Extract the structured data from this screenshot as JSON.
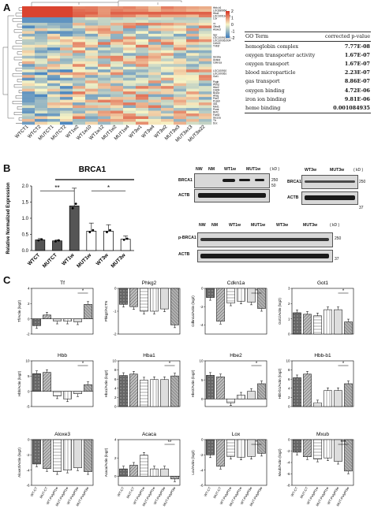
{
  "panels": {
    "a": "A",
    "b": "B",
    "c": "C"
  },
  "heatmap": {
    "columns": [
      "WTCT1",
      "WTCT2",
      "MUTCT1",
      "MUTCT2",
      "WT1w2",
      "WT1w10",
      "WT1w12",
      "MUT1w2",
      "MUT1w4",
      "WT3w1",
      "WT3w4",
      "WT3w2",
      "MUT3w3",
      "MUT3w13",
      "MUT3w22"
    ],
    "row_labels": [
      "Hbb-b1",
      "LOC689064",
      "Hba1",
      "LOC100134871",
      "Lox",
      "",
      "Tf",
      "Olfml3",
      "Aloxe3",
      "",
      "Gpr",
      "LOC100911070",
      "LOC100361934",
      "Cdh22",
      "Tnfrsf",
      "",
      "",
      "",
      "Slc16a",
      "Acaca",
      "Cdkn1a",
      "",
      "",
      "LOC100910",
      "LOC100361",
      "Got1",
      "",
      "Pygb",
      "Pkm2",
      "Hbe2",
      "Cdk5r",
      "Bcl2a",
      "Ahsg",
      "Pdx1",
      "Pcsk9",
      "Gli1",
      "Mxd1",
      "Pnmt",
      "Rnf2",
      "Fam3",
      "Slc12a",
      "Tfr",
      "Dcx"
    ],
    "colorbar_ticks": [
      "2",
      "1",
      "0",
      "-1",
      "-2"
    ]
  },
  "go_table": {
    "header": {
      "term": "GO Term",
      "pvalue": "corrected p-value"
    },
    "rows": [
      {
        "term": "hemoglobin complex",
        "p": "7.77E-08"
      },
      {
        "term": "oxygen transporter activity",
        "p": "1.67E-07"
      },
      {
        "term": "oxygen transport",
        "p": "1.67E-07"
      },
      {
        "term": "blood microparticle",
        "p": "2.23E-07"
      },
      {
        "term": "gas transport",
        "p": "8.86E-07"
      },
      {
        "term": "oxygen binding",
        "p": "4.72E-06"
      },
      {
        "term": "iron ion binding",
        "p": "9.81E-06"
      },
      {
        "term": "heme binding",
        "p": "0.001084935"
      }
    ]
  },
  "chart_data": [
    {
      "type": "bar",
      "panel": "B",
      "title": "BRCA1",
      "ylabel": "Relative Normalized Expression",
      "categories": [
        "WTCT",
        "MUTCT",
        "WT1w",
        "MUT1w",
        "WT3w",
        "MUT3w"
      ],
      "values": [
        0.33,
        0.3,
        1.38,
        0.6,
        0.6,
        0.35
      ],
      "errors": [
        0.04,
        0.03,
        0.55,
        0.25,
        0.2,
        0.1
      ],
      "ylim": [
        0.0,
        2.0
      ],
      "yticks": [
        "0.0",
        "0.5",
        "1.0",
        "1.5",
        "2.0"
      ],
      "significance": [
        "**",
        "*"
      ]
    },
    {
      "type": "bar",
      "panel": "C",
      "title": "Tf",
      "ylabel": "Tf/Actin (log2)",
      "categories": [
        "WT-CT",
        "MUT-CT",
        "WT-PolyPl1w",
        "MUT-PolyPl1w",
        "WT-PolyPl3w",
        "MUT-PolyPl3w"
      ],
      "values": [
        -0.9,
        0.5,
        -0.3,
        -0.3,
        -0.4,
        1.9
      ],
      "ylim": [
        -2,
        4
      ],
      "yticks": [
        "4",
        "2",
        "0",
        "-2"
      ],
      "significance": [
        "*"
      ]
    },
    {
      "type": "bar",
      "panel": "C",
      "title": "Phkg2",
      "ylabel": "Phkg2/ACTN",
      "categories": [
        "WT-CT",
        "MUT-CT",
        "WT-PolyPl1w",
        "MUT-PolyPl1w",
        "WT-PolyPl3w",
        "MUT-PolyPl3w"
      ],
      "values": [
        -0.7,
        -0.8,
        -1.0,
        -1.0,
        -0.9,
        -1.6
      ],
      "ylim": [
        -2,
        0
      ],
      "yticks": [
        "0",
        "-1",
        "-2"
      ],
      "significance": []
    },
    {
      "type": "bar",
      "panel": "C",
      "title": "Cdkn1a",
      "ylabel": "Cdkn1a/Actin (log2)",
      "categories": [
        "WT-CT",
        "MUT-CT",
        "WT-PolyPl1w",
        "MUT-PolyPl1w",
        "WT-PolyPl3w",
        "MUT-PolyPl3w"
      ],
      "values": [
        -1.0,
        -3.6,
        -1.6,
        -1.4,
        -1.5,
        -2.2
      ],
      "ylim": [
        -5,
        0
      ],
      "yticks": [
        "0",
        "-2",
        "-4"
      ],
      "significance": [
        "*"
      ]
    },
    {
      "type": "bar",
      "panel": "C",
      "title": "Got1",
      "ylabel": "Got1/Actin (log2)",
      "categories": [
        "WT-CT",
        "MUT-CT",
        "WT-PolyPl1w",
        "MUT-PolyPl1w",
        "WT-PolyPl3w",
        "MUT-PolyPl3w"
      ],
      "values": [
        1.4,
        1.3,
        1.2,
        1.6,
        1.6,
        0.8
      ],
      "ylim": [
        0,
        3
      ],
      "yticks": [
        "3",
        "2",
        "1",
        "0"
      ],
      "significance": [
        "*"
      ]
    },
    {
      "type": "bar",
      "panel": "C",
      "title": "Hbb",
      "ylabel": "Hbb/Actin (log2)",
      "categories": [
        "WT-CT",
        "MUT-CT",
        "WT-PolyPl1w",
        "MUT-PolyPl1w",
        "WT-PolyPl3w",
        "MUT-PolyPl3w"
      ],
      "values": [
        5.8,
        6.2,
        -1.5,
        -2.5,
        -0.8,
        2.2
      ],
      "ylim": [
        -5,
        10
      ],
      "yticks": [
        "10",
        "5",
        "0",
        "-5"
      ],
      "significance": [
        "*"
      ]
    },
    {
      "type": "bar",
      "panel": "C",
      "title": "Hba1",
      "ylabel": "Hba1/Actin (log2)",
      "categories": [
        "WT-CT",
        "MUT-CT",
        "WT-PolyPl1w",
        "MUT-PolyPl1w",
        "WT-PolyPl3w",
        "MUT-PolyPl3w"
      ],
      "values": [
        6.8,
        7.1,
        5.8,
        5.9,
        5.9,
        6.7
      ],
      "ylim": [
        0,
        10
      ],
      "yticks": [
        "10",
        "8",
        "6",
        "4",
        "2",
        "0"
      ],
      "significance": [
        "*"
      ]
    },
    {
      "type": "bar",
      "panel": "C",
      "title": "Hbe2",
      "ylabel": "Hbe2/Actin (log2)",
      "categories": [
        "WT-CT",
        "MUT-CT",
        "WT-PolyPl1w",
        "MUT-PolyPl1w",
        "WT-PolyPl3w",
        "MUT-PolyPl3w"
      ],
      "values": [
        6.2,
        5.8,
        -1.0,
        1.0,
        2.0,
        4.0
      ],
      "ylim": [
        -2,
        10
      ],
      "yticks": [
        "10",
        "5",
        "0"
      ],
      "significance": [
        "*"
      ]
    },
    {
      "type": "bar",
      "panel": "C",
      "title": "Hbb-b1",
      "ylabel": "Hbb-b1/Actin (log2)",
      "categories": [
        "WT-CT",
        "MUT-CT",
        "WT-PolyPl1w",
        "MUT-PolyPl1w",
        "WT-PolyPl3w",
        "MUT-PolyPl3w"
      ],
      "values": [
        6.3,
        7.1,
        0.8,
        3.5,
        3.5,
        5.0
      ],
      "ylim": [
        0,
        10
      ],
      "yticks": [
        "10",
        "8",
        "6",
        "4",
        "2",
        "0"
      ],
      "significance": [
        "*"
      ]
    },
    {
      "type": "bar",
      "panel": "C",
      "title": "Aloxe3",
      "ylabel": "Aloxe3/Actin (log2)",
      "categories": [
        "WT-CT",
        "MUT-CT",
        "WT-PolyPl1w",
        "MUT-PolyPl1w",
        "WT-PolyPl3w",
        "MUT-PolyPl3w"
      ],
      "values": [
        -3.2,
        -3.8,
        -4.2,
        -4.0,
        -3.7,
        -4.2
      ],
      "ylim": [
        -6,
        0
      ],
      "yticks": [
        "0",
        "-2",
        "-4",
        "-6"
      ],
      "significance": []
    },
    {
      "type": "bar",
      "panel": "C",
      "title": "Acaca",
      "ylabel": "Acaca/Actin (log2)",
      "categories": [
        "WT-CT",
        "MUT-CT",
        "WT-PolyPl1w",
        "MUT-PolyPl1w",
        "WT-PolyPl3w",
        "MUT-PolyPl3w"
      ],
      "values": [
        0.8,
        1.2,
        2.3,
        0.8,
        0.8,
        -0.3
      ],
      "ylim": [
        -1,
        4
      ],
      "yticks": [
        "4",
        "2",
        "0"
      ],
      "significance": [
        "**"
      ]
    },
    {
      "type": "bar",
      "panel": "C",
      "title": "Lox",
      "ylabel": "Lox/Actin (log2)",
      "categories": [
        "WT-CT",
        "MUT-CT",
        "WT-PolyPl1w",
        "MUT-PolyPl1w",
        "WT-PolyPl3w",
        "MUT-PolyPl3w"
      ],
      "values": [
        -2.0,
        -3.5,
        -2.2,
        -2.3,
        -2.2,
        -1.8
      ],
      "ylim": [
        -6,
        0
      ],
      "yticks": [
        "0",
        "-2",
        "-4",
        "-6"
      ],
      "significance": [
        "*"
      ]
    },
    {
      "type": "bar",
      "panel": "C",
      "title": "Mxub",
      "ylabel": "Mxub/Actin (log2)",
      "categories": [
        "WT-CT",
        "MUT-CT",
        "WT-PolyPl1w",
        "MUT-PolyPl1w",
        "WT-PolyPl3w",
        "MUT-PolyPl3w"
      ],
      "values": [
        -2.2,
        -3.0,
        -3.4,
        -3.2,
        -3.8,
        -5.5
      ],
      "ylim": [
        -8,
        0
      ],
      "yticks": [
        "0",
        "-2",
        "-4",
        "-6",
        "-8"
      ],
      "significance": [
        "***"
      ]
    }
  ],
  "blots": {
    "blot1": {
      "lanes": [
        "NW",
        "NM",
        "WT1w",
        "MUT1w"
      ],
      "rows": [
        "BRCA1",
        "ACTB"
      ],
      "kd": "( kD )",
      "markers": [
        "250",
        "50"
      ]
    },
    "blot2": {
      "lanes": [
        "WT3w",
        "MUT3w"
      ],
      "rows": [
        "BRCA1",
        "ACTB"
      ],
      "kd": "( kD )",
      "markers": [
        "250",
        "37"
      ]
    },
    "blot3": {
      "lanes": [
        "NW",
        "NM",
        "WT1w",
        "MUT1w",
        "WT3w",
        "MUT3w"
      ],
      "rows": [
        "p-BRCA1",
        "ACTB"
      ],
      "kd": "( kD )",
      "markers": [
        "250",
        "37"
      ]
    }
  },
  "colors": {
    "heat_high": "#d7301f",
    "heat_mid": "#f7f4c6",
    "heat_low": "#3a7bbf"
  }
}
